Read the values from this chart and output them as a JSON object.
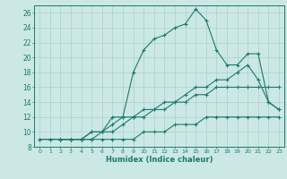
{
  "title": "",
  "xlabel": "Humidex (Indice chaleur)",
  "bg_color": "#cce8e4",
  "grid_color": "#aad0cc",
  "line_color": "#1a7a6e",
  "xlim": [
    -0.5,
    23.5
  ],
  "ylim": [
    8,
    27
  ],
  "xticks": [
    0,
    1,
    2,
    3,
    4,
    5,
    6,
    7,
    8,
    9,
    10,
    11,
    12,
    13,
    14,
    15,
    16,
    17,
    18,
    19,
    20,
    21,
    22,
    23
  ],
  "yticks": [
    8,
    10,
    12,
    14,
    16,
    18,
    20,
    22,
    24,
    26
  ],
  "lines": [
    {
      "x": [
        0,
        1,
        2,
        3,
        4,
        5,
        6,
        7,
        8,
        9,
        10,
        11,
        12,
        13,
        14,
        15,
        16,
        17,
        18,
        19,
        20,
        21,
        22,
        23
      ],
      "y": [
        9,
        9,
        9,
        9,
        9,
        9,
        9,
        9,
        9,
        9,
        10,
        10,
        10,
        11,
        11,
        11,
        12,
        12,
        12,
        12,
        12,
        12,
        12,
        12
      ]
    },
    {
      "x": [
        0,
        1,
        2,
        3,
        4,
        5,
        6,
        7,
        8,
        9,
        10,
        11,
        12,
        13,
        14,
        15,
        16,
        17,
        18,
        19,
        20,
        21,
        22,
        23
      ],
      "y": [
        9,
        9,
        9,
        9,
        9,
        10,
        10,
        10,
        11,
        12,
        12,
        13,
        13,
        14,
        14,
        15,
        15,
        16,
        16,
        16,
        16,
        16,
        16,
        16
      ]
    },
    {
      "x": [
        2,
        3,
        4,
        5,
        6,
        7,
        8,
        9,
        10,
        11,
        12,
        13,
        14,
        15,
        16,
        17,
        18,
        19,
        20,
        21,
        22,
        23
      ],
      "y": [
        9,
        9,
        9,
        9,
        10,
        11,
        12,
        12,
        13,
        13,
        14,
        14,
        15,
        16,
        16,
        17,
        17,
        18,
        19,
        17,
        14,
        13
      ]
    },
    {
      "x": [
        2,
        3,
        4,
        5,
        6,
        7,
        8,
        9,
        10,
        11,
        12,
        13,
        14,
        15,
        16,
        17,
        18,
        19,
        20,
        21,
        22,
        23
      ],
      "y": [
        9,
        9,
        9,
        10,
        10,
        12,
        12,
        18,
        21,
        22.5,
        23,
        24,
        24.5,
        26.5,
        25,
        21,
        19,
        19,
        20.5,
        20.5,
        14,
        13
      ]
    }
  ]
}
